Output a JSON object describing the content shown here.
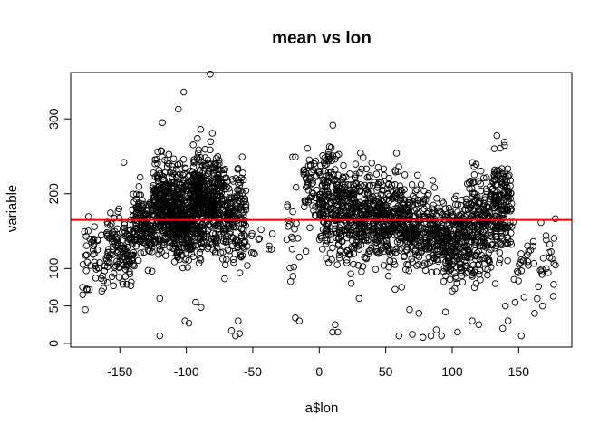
{
  "chart_data": {
    "type": "scatter",
    "title": "mean  vs lon",
    "xlabel": "a$lon",
    "ylabel": "variable",
    "xlim": [
      -187,
      190
    ],
    "ylim": [
      -5,
      362
    ],
    "xticks": [
      -150,
      -100,
      -50,
      0,
      50,
      100,
      150
    ],
    "xtick_labels": [
      "-150",
      "-100",
      "-50",
      "0",
      "50",
      "100",
      "150"
    ],
    "yticks": [
      0,
      50,
      100,
      200,
      300
    ],
    "ytick_labels": [
      "0",
      "50",
      "100",
      "200",
      "300"
    ],
    "grid": false,
    "marker": "open-circle",
    "point_color": "#000000",
    "reference_line": {
      "y": 165,
      "color": "#ff0000"
    },
    "clusters": [
      {
        "x_range": [
          -180,
          -160
        ],
        "y_center": 112,
        "y_spread": 25,
        "count": 45
      },
      {
        "x_range": [
          -160,
          -140
        ],
        "y_center": 128,
        "y_spread": 22,
        "count": 130
      },
      {
        "x_range": [
          -140,
          -125
        ],
        "y_center": 158,
        "y_spread": 24,
        "count": 150
      },
      {
        "x_range": [
          -125,
          -110
        ],
        "y_center": 182,
        "y_spread": 30,
        "count": 300
      },
      {
        "x_range": [
          -110,
          -95
        ],
        "y_center": 172,
        "y_spread": 30,
        "count": 320
      },
      {
        "x_range": [
          -95,
          -75
        ],
        "y_center": 192,
        "y_spread": 32,
        "count": 420
      },
      {
        "x_range": [
          -75,
          -55
        ],
        "y_center": 170,
        "y_spread": 32,
        "count": 200
      },
      {
        "x_range": [
          -55,
          -35
        ],
        "y_center": 140,
        "y_spread": 30,
        "count": 12
      },
      {
        "x_range": [
          -25,
          -15
        ],
        "y_center": 150,
        "y_spread": 35,
        "count": 18
      },
      {
        "x_range": [
          -12,
          0
        ],
        "y_center": 205,
        "y_spread": 25,
        "count": 50
      },
      {
        "x_range": [
          0,
          15
        ],
        "y_center": 192,
        "y_spread": 35,
        "count": 180
      },
      {
        "x_range": [
          15,
          40
        ],
        "y_center": 172,
        "y_spread": 30,
        "count": 300
      },
      {
        "x_range": [
          40,
          65
        ],
        "y_center": 168,
        "y_spread": 30,
        "count": 300
      },
      {
        "x_range": [
          65,
          90
        ],
        "y_center": 150,
        "y_spread": 25,
        "count": 260
      },
      {
        "x_range": [
          90,
          110
        ],
        "y_center": 140,
        "y_spread": 25,
        "count": 220
      },
      {
        "x_range": [
          110,
          130
        ],
        "y_center": 155,
        "y_spread": 35,
        "count": 230
      },
      {
        "x_range": [
          130,
          145
        ],
        "y_center": 185,
        "y_spread": 38,
        "count": 180
      },
      {
        "x_range": [
          145,
          178
        ],
        "y_center": 110,
        "y_spread": 25,
        "count": 45
      }
    ],
    "outliers": [
      {
        "x": -82,
        "y": 360
      },
      {
        "x": -102,
        "y": 336
      },
      {
        "x": -106,
        "y": 313
      },
      {
        "x": -118,
        "y": 295
      },
      {
        "x": -147,
        "y": 242
      },
      {
        "x": -18,
        "y": 249
      },
      {
        "x": -178,
        "y": 65
      },
      {
        "x": -176,
        "y": 45
      },
      {
        "x": -120,
        "y": 10
      },
      {
        "x": -101,
        "y": 30
      },
      {
        "x": -98,
        "y": 27
      },
      {
        "x": -66,
        "y": 17
      },
      {
        "x": -63,
        "y": 10
      },
      {
        "x": -60,
        "y": 13
      },
      {
        "x": -61,
        "y": 30
      },
      {
        "x": -89,
        "y": 48
      },
      {
        "x": -93,
        "y": 55
      },
      {
        "x": -120,
        "y": 60
      },
      {
        "x": -18,
        "y": 34
      },
      {
        "x": -15,
        "y": 30
      },
      {
        "x": 10,
        "y": 15
      },
      {
        "x": 12,
        "y": 25
      },
      {
        "x": 14,
        "y": 15
      },
      {
        "x": 60,
        "y": 10
      },
      {
        "x": 70,
        "y": 12
      },
      {
        "x": 78,
        "y": 8
      },
      {
        "x": 84,
        "y": 10
      },
      {
        "x": 88,
        "y": 18
      },
      {
        "x": 92,
        "y": 10
      },
      {
        "x": 104,
        "y": 15
      },
      {
        "x": 115,
        "y": 30
      },
      {
        "x": 120,
        "y": 25
      },
      {
        "x": 138,
        "y": 20
      },
      {
        "x": 142,
        "y": 30
      },
      {
        "x": 152,
        "y": 10
      },
      {
        "x": 140,
        "y": 50
      },
      {
        "x": 162,
        "y": 40
      },
      {
        "x": 168,
        "y": 50
      },
      {
        "x": 176,
        "y": 63
      },
      {
        "x": 75,
        "y": 40
      },
      {
        "x": 68,
        "y": 45
      },
      {
        "x": 57,
        "y": 72
      },
      {
        "x": 62,
        "y": 75
      },
      {
        "x": 95,
        "y": 42
      },
      {
        "x": 100,
        "y": 70
      },
      {
        "x": -22,
        "y": 101
      },
      {
        "x": -45,
        "y": 140
      },
      {
        "x": -38,
        "y": 126
      },
      {
        "x": -10,
        "y": 123
      },
      {
        "x": -20,
        "y": 176
      },
      {
        "x": 7,
        "y": 108
      },
      {
        "x": 24,
        "y": 80
      },
      {
        "x": 52,
        "y": 90
      },
      {
        "x": 30,
        "y": 60
      }
    ]
  }
}
